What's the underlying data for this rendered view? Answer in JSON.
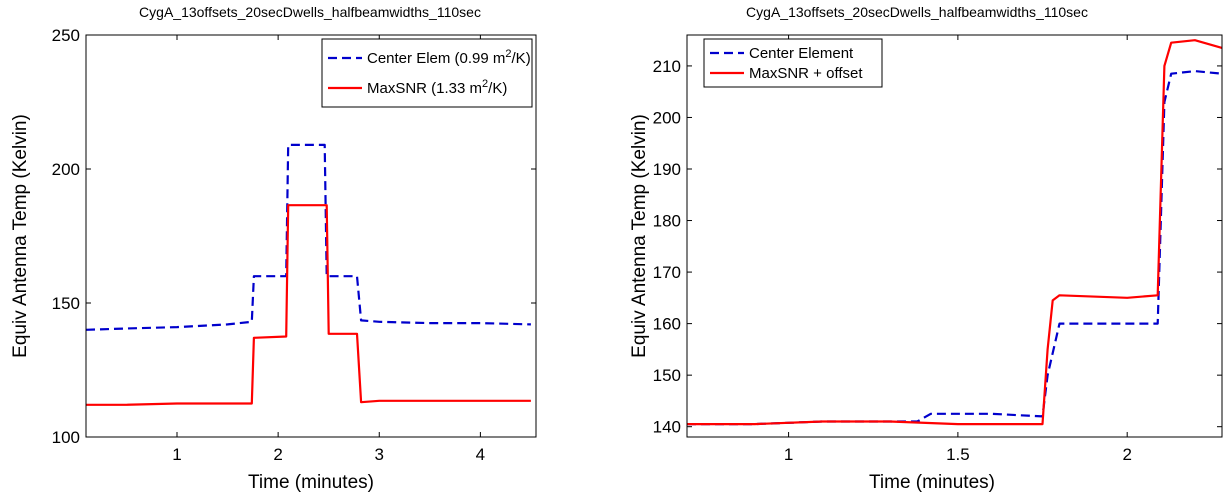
{
  "chart_data": [
    {
      "type": "line",
      "title": "CygA_13offsets_20secDwells_halfbeamwidths_110sec",
      "xlabel": "Time (minutes)",
      "ylabel": "Equiv Antenna Temp (Kelvin)",
      "xlim": [
        0.1,
        4.55
      ],
      "ylim": [
        100,
        250
      ],
      "xticks": [
        1,
        2,
        3,
        4
      ],
      "yticks": [
        100,
        150,
        200,
        250
      ],
      "grid": false,
      "legend_position": "top-right",
      "series": [
        {
          "name": "Center Elem (0.99 m²/K)",
          "legend_base": "Center Elem (0.99 m",
          "legend_sup": "2",
          "legend_tail": "/K)",
          "color": "#0000cc",
          "style": "dashed",
          "x": [
            0.1,
            0.5,
            1.0,
            1.5,
            1.74,
            1.76,
            2.08,
            2.1,
            2.46,
            2.48,
            2.78,
            2.82,
            3.0,
            3.5,
            4.0,
            4.5
          ],
          "y": [
            140,
            140.5,
            141,
            142,
            143,
            160,
            160,
            209,
            209,
            160,
            160,
            143.5,
            143,
            142.5,
            142.5,
            142
          ]
        },
        {
          "name": "MaxSNR (1.33 m²/K)",
          "legend_base": "MaxSNR (1.33 m",
          "legend_sup": "2",
          "legend_tail": "/K)",
          "color": "#ff0000",
          "style": "solid",
          "x": [
            0.1,
            0.5,
            1.0,
            1.5,
            1.74,
            1.76,
            2.08,
            2.1,
            2.48,
            2.5,
            2.78,
            2.82,
            3.0,
            3.5,
            4.0,
            4.5
          ],
          "y": [
            112,
            112,
            112.5,
            112.5,
            112.5,
            137,
            137.5,
            186.5,
            186.5,
            138.5,
            138.5,
            113,
            113.5,
            113.5,
            113.5,
            113.5
          ]
        }
      ]
    },
    {
      "type": "line",
      "title": "CygA_13offsets_20secDwells_halfbeamwidths_110sec",
      "xlabel": "Time (minutes)",
      "ylabel": "Equiv Antenna Temp (Kelvin)",
      "xlim": [
        0.7,
        2.28
      ],
      "ylim": [
        138,
        216
      ],
      "xticks": [
        1,
        1.5,
        2
      ],
      "yticks": [
        140,
        150,
        160,
        170,
        180,
        190,
        200,
        210
      ],
      "grid": false,
      "legend_position": "top-left",
      "series": [
        {
          "name": "Center Element",
          "color": "#0000cc",
          "style": "dashed",
          "x": [
            0.7,
            0.9,
            1.1,
            1.3,
            1.38,
            1.42,
            1.6,
            1.75,
            1.765,
            1.8,
            2.0,
            2.09,
            2.11,
            2.13,
            2.2,
            2.28
          ],
          "y": [
            140.5,
            140.5,
            141,
            141,
            141,
            142.5,
            142.5,
            142,
            150,
            160,
            160,
            160,
            203,
            208.5,
            209,
            208.5
          ]
        },
        {
          "name": "MaxSNR + offset",
          "color": "#ff0000",
          "style": "solid",
          "x": [
            0.7,
            0.9,
            1.1,
            1.3,
            1.5,
            1.75,
            1.765,
            1.78,
            1.8,
            2.0,
            2.09,
            2.11,
            2.13,
            2.2,
            2.28
          ],
          "y": [
            140.5,
            140.5,
            141,
            141,
            140.5,
            140.5,
            155,
            164.5,
            165.5,
            165,
            165.5,
            210,
            214.5,
            215,
            213.5
          ]
        }
      ]
    }
  ]
}
